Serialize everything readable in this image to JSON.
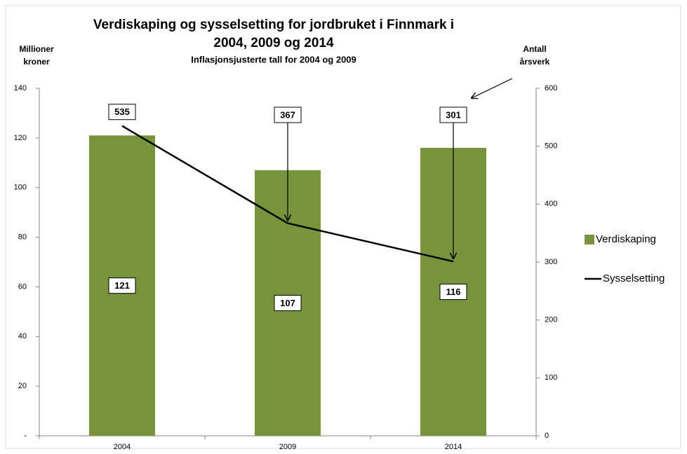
{
  "chart_data": {
    "type": "bar",
    "title": [
      "Verdiskaping og sysselsetting for jordbruket i Finnmark i",
      "2004, 2009 og 2014"
    ],
    "subtitle": "Inflasjonsjusterte tall for 2004 og 2009",
    "ylabel": [
      "Millioner",
      "kroner"
    ],
    "y2label": [
      "Antall",
      "årsverk"
    ],
    "categories": [
      "2004",
      "2009",
      "2014"
    ],
    "series": [
      {
        "name": "Verdiskaping",
        "type": "bar",
        "color": "#77933c",
        "values": [
          121,
          107,
          116
        ]
      },
      {
        "name": "Sysselsetting",
        "type": "line",
        "axis": "y2",
        "color": "#000000",
        "values": [
          535,
          367,
          301
        ]
      }
    ],
    "ylim": [
      0,
      140
    ],
    "yticks": [
      {
        "value": 0,
        "label": "-"
      },
      20,
      40,
      60,
      80,
      100,
      120,
      140
    ],
    "y2lim": [
      0,
      600
    ],
    "y2ticks": [
      0,
      100,
      200,
      300,
      400,
      500,
      600
    ],
    "legend": "right"
  }
}
